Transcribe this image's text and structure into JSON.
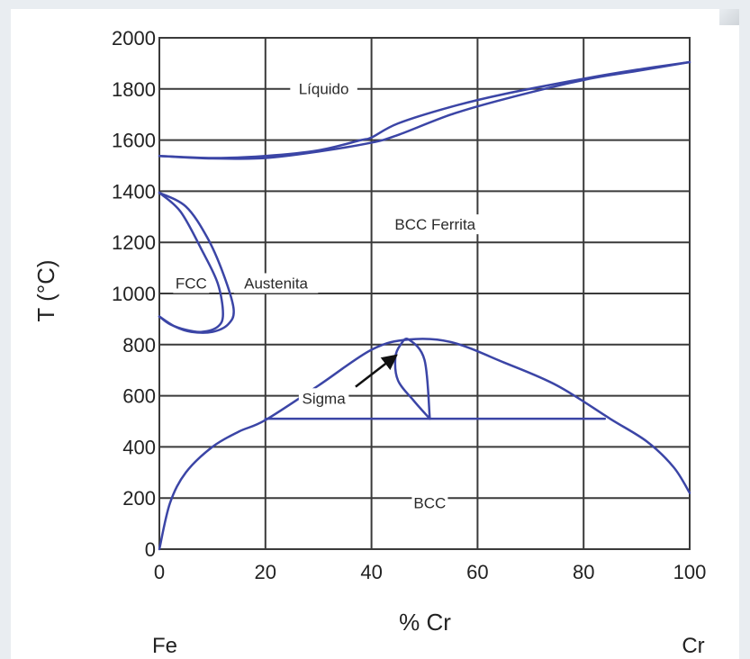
{
  "chart_data": {
    "type": "line",
    "title": "",
    "xlabel": "% Cr",
    "ylabel": "T (°C)",
    "xlim": [
      0,
      100
    ],
    "ylim": [
      0,
      2000
    ],
    "x_ticks": [
      "0",
      "20",
      "40",
      "60",
      "80",
      "100"
    ],
    "y_ticks": [
      "0",
      "200",
      "400",
      "600",
      "800",
      "1000",
      "1200",
      "1400",
      "1600",
      "1800",
      "2000"
    ],
    "grid": true,
    "end_labels": {
      "left": "Fe",
      "right": "Cr"
    },
    "line_color": "#3b45a6",
    "region_labels": [
      {
        "text": "Líquido",
        "x": 31,
        "y": 1790
      },
      {
        "text": "BCC Ferrita",
        "x": 52,
        "y": 1260
      },
      {
        "text": "FCC",
        "x": 6,
        "y": 1030
      },
      {
        "text": "Austenita",
        "x": 22,
        "y": 1030
      },
      {
        "text": "Sigma",
        "x": 31,
        "y": 580
      },
      {
        "text": "BCC",
        "x": 51,
        "y": 170
      }
    ],
    "annotations": [
      {
        "type": "arrow",
        "from": [
          37,
          635
        ],
        "to": [
          44.5,
          755
        ]
      }
    ],
    "series": [
      {
        "id": "liquidus",
        "x": [
          0,
          10,
          20,
          30,
          38,
          40,
          45,
          55,
          65,
          80,
          90,
          100
        ],
        "y": [
          1538,
          1530,
          1538,
          1560,
          1600,
          1610,
          1665,
          1730,
          1780,
          1840,
          1875,
          1905
        ]
      },
      {
        "id": "solidus",
        "x": [
          0,
          10,
          20,
          30,
          40,
          45,
          55,
          65,
          80,
          90,
          100
        ],
        "y": [
          1538,
          1528,
          1530,
          1555,
          1590,
          1620,
          1700,
          1760,
          1835,
          1870,
          1905
        ]
      },
      {
        "id": "gamma_loop_outer",
        "x": [
          0,
          5,
          9,
          12,
          14,
          13,
          10,
          6,
          3,
          0
        ],
        "y": [
          1394,
          1340,
          1220,
          1080,
          940,
          880,
          850,
          850,
          870,
          910
        ]
      },
      {
        "id": "gamma_loop_inner",
        "x": [
          0,
          4,
          8,
          11,
          12,
          11,
          8,
          5,
          2,
          0
        ],
        "y": [
          1394,
          1320,
          1170,
          1040,
          920,
          870,
          850,
          858,
          880,
          910
        ]
      },
      {
        "id": "bcc_miscibility_gap",
        "x": [
          0,
          2,
          5,
          10,
          15,
          20,
          30,
          40,
          47,
          55,
          65,
          75,
          85,
          92,
          97,
          100
        ],
        "y": [
          0,
          180,
          300,
          400,
          460,
          505,
          640,
          780,
          820,
          810,
          730,
          640,
          510,
          420,
          320,
          220
        ]
      },
      {
        "id": "sigma_loop",
        "x": [
          51,
          48,
          45,
          44.5,
          45.5,
          47,
          50,
          51
        ],
        "y": [
          510,
          580,
          660,
          750,
          800,
          820,
          740,
          510
        ]
      },
      {
        "id": "sigma_eutectoid",
        "x": [
          20,
          84
        ],
        "y": [
          510,
          510
        ]
      }
    ]
  }
}
